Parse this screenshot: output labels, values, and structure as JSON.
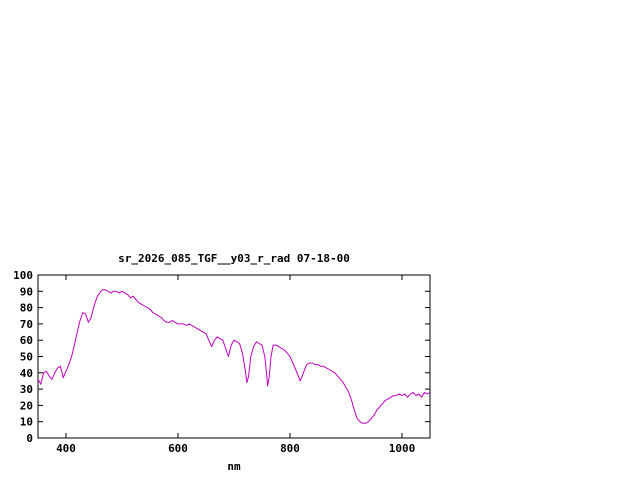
{
  "chart_data": {
    "type": "line",
    "title": "sr_2026_085_TGF__y03_r_rad 07-18-00",
    "xlabel": "nm",
    "ylabel": "",
    "xlim": [
      350,
      1050
    ],
    "ylim": [
      0,
      100
    ],
    "xticks": [
      400,
      600,
      800,
      1000
    ],
    "yticks": [
      0,
      10,
      20,
      30,
      40,
      50,
      60,
      70,
      80,
      90,
      100
    ],
    "grid": false,
    "legend": "none",
    "line_color": "#c000c0",
    "border_color": "#000000",
    "background_color": "#ffffff",
    "series": [
      {
        "name": "sr_2026_085_TGF__y03_r_rad",
        "points": [
          [
            350,
            36
          ],
          [
            355,
            33
          ],
          [
            360,
            40
          ],
          [
            365,
            41
          ],
          [
            370,
            38
          ],
          [
            375,
            36
          ],
          [
            380,
            40
          ],
          [
            385,
            43
          ],
          [
            390,
            44
          ],
          [
            395,
            37
          ],
          [
            400,
            41
          ],
          [
            405,
            45
          ],
          [
            410,
            50
          ],
          [
            415,
            57
          ],
          [
            420,
            65
          ],
          [
            425,
            72
          ],
          [
            430,
            77
          ],
          [
            435,
            76
          ],
          [
            440,
            71
          ],
          [
            445,
            74
          ],
          [
            450,
            81
          ],
          [
            455,
            86
          ],
          [
            460,
            89
          ],
          [
            465,
            91
          ],
          [
            470,
            91
          ],
          [
            475,
            90
          ],
          [
            480,
            89
          ],
          [
            485,
            90
          ],
          [
            490,
            90
          ],
          [
            495,
            89
          ],
          [
            500,
            90
          ],
          [
            505,
            89
          ],
          [
            510,
            88
          ],
          [
            515,
            86
          ],
          [
            520,
            87
          ],
          [
            525,
            85
          ],
          [
            530,
            83
          ],
          [
            535,
            82
          ],
          [
            540,
            81
          ],
          [
            545,
            80
          ],
          [
            550,
            79
          ],
          [
            555,
            77
          ],
          [
            560,
            76
          ],
          [
            565,
            75
          ],
          [
            570,
            74
          ],
          [
            575,
            72
          ],
          [
            580,
            71
          ],
          [
            585,
            71
          ],
          [
            590,
            72
          ],
          [
            595,
            71
          ],
          [
            600,
            70
          ],
          [
            605,
            70
          ],
          [
            610,
            70
          ],
          [
            615,
            69
          ],
          [
            620,
            70
          ],
          [
            625,
            69
          ],
          [
            630,
            68
          ],
          [
            635,
            67
          ],
          [
            640,
            66
          ],
          [
            645,
            65
          ],
          [
            650,
            64
          ],
          [
            655,
            60
          ],
          [
            660,
            56
          ],
          [
            665,
            60
          ],
          [
            670,
            62
          ],
          [
            675,
            61
          ],
          [
            680,
            60
          ],
          [
            685,
            55
          ],
          [
            690,
            50
          ],
          [
            695,
            57
          ],
          [
            700,
            60
          ],
          [
            705,
            59
          ],
          [
            710,
            58
          ],
          [
            715,
            52
          ],
          [
            720,
            42
          ],
          [
            723,
            34
          ],
          [
            726,
            38
          ],
          [
            730,
            50
          ],
          [
            735,
            56
          ],
          [
            740,
            59
          ],
          [
            745,
            58
          ],
          [
            750,
            57
          ],
          [
            755,
            50
          ],
          [
            758,
            40
          ],
          [
            760,
            32
          ],
          [
            763,
            38
          ],
          [
            766,
            50
          ],
          [
            770,
            57
          ],
          [
            775,
            57
          ],
          [
            780,
            56
          ],
          [
            785,
            55
          ],
          [
            790,
            54
          ],
          [
            795,
            52
          ],
          [
            800,
            50
          ],
          [
            805,
            46
          ],
          [
            810,
            42
          ],
          [
            815,
            38
          ],
          [
            818,
            35
          ],
          [
            822,
            38
          ],
          [
            826,
            42
          ],
          [
            830,
            45
          ],
          [
            835,
            46
          ],
          [
            840,
            46
          ],
          [
            845,
            45
          ],
          [
            850,
            45
          ],
          [
            855,
            44
          ],
          [
            860,
            44
          ],
          [
            865,
            43
          ],
          [
            870,
            42
          ],
          [
            875,
            41
          ],
          [
            880,
            40
          ],
          [
            885,
            38
          ],
          [
            890,
            36
          ],
          [
            895,
            34
          ],
          [
            900,
            31
          ],
          [
            905,
            28
          ],
          [
            910,
            23
          ],
          [
            915,
            17
          ],
          [
            920,
            12
          ],
          [
            925,
            10
          ],
          [
            930,
            9
          ],
          [
            935,
            9
          ],
          [
            940,
            10
          ],
          [
            945,
            12
          ],
          [
            950,
            14
          ],
          [
            955,
            17
          ],
          [
            960,
            19
          ],
          [
            965,
            21
          ],
          [
            970,
            23
          ],
          [
            975,
            24
          ],
          [
            980,
            25
          ],
          [
            985,
            26
          ],
          [
            990,
            26
          ],
          [
            995,
            27
          ],
          [
            1000,
            26
          ],
          [
            1005,
            27
          ],
          [
            1010,
            25
          ],
          [
            1015,
            27
          ],
          [
            1020,
            28
          ],
          [
            1025,
            26
          ],
          [
            1030,
            27
          ],
          [
            1035,
            25
          ],
          [
            1040,
            28
          ],
          [
            1045,
            27
          ],
          [
            1050,
            28
          ]
        ]
      }
    ]
  }
}
